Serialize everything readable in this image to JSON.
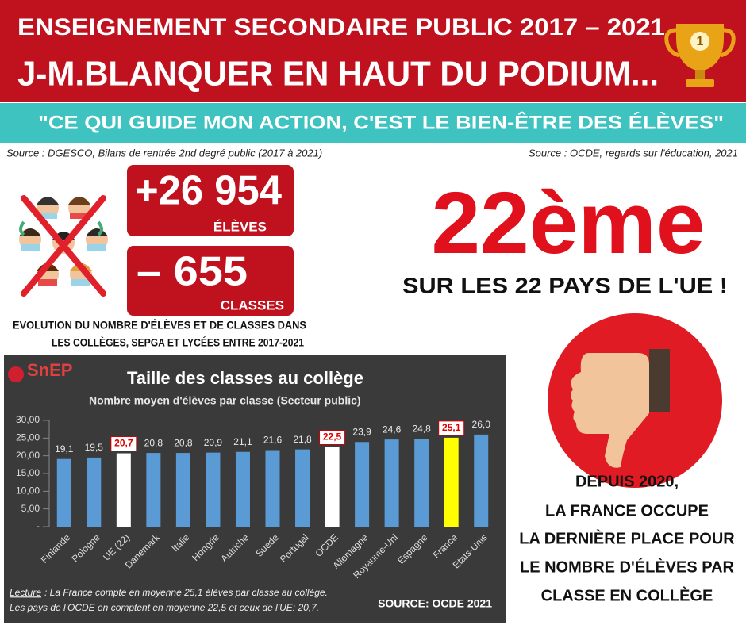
{
  "header": {
    "line1": "ENSEIGNEMENT SECONDAIRE PUBLIC   2017 – 2021",
    "line2": "J-M.BLANQUER EN HAUT DU PODIUM...",
    "trophy": "1"
  },
  "quote": "\"CE QUI GUIDE MON ACTION, C'EST LE BIEN-ÊTRE DES ÉLÈVES\"",
  "sources": {
    "left": "Source : DGESCO, Bilans de rentrée 2nd degré public (2017 à 2021)",
    "right": "Source : OCDE, regards sur l'éducation, 2021"
  },
  "students": {
    "value": "+26 954",
    "label": "ÉLÈVES"
  },
  "classes": {
    "value": "– 655",
    "label": "CLASSES"
  },
  "caption": [
    "EVOLUTION DU NOMBRE D'ÉLÈVES ET DE CLASSES DANS",
    "LES COLLÈGES, SEPGA ET LYCÉES ENTRE 2017-2021"
  ],
  "rank": {
    "value": "22ème",
    "text": "SUR LES 22 PAYS DE L'UE !"
  },
  "conclusion": [
    "DEPUIS 2020,",
    "LA FRANCE OCCUPE",
    "LA DERNIÈRE PLACE POUR",
    "LE NOMBRE D'ÉLÈVES PAR",
    "CLASSE EN COLLÈGE"
  ],
  "chart_data": {
    "type": "bar",
    "logo": "SnEP",
    "title": "Taille des classes au collège",
    "subtitle": "Nombre moyen d'élèves par classe (Secteur public)",
    "categories": [
      "Finlande",
      "Pologne",
      "UE (22)",
      "Danemark",
      "Italie",
      "Hongrie",
      "Autriche",
      "Suède",
      "Portugal",
      "OCDE",
      "Allemagne",
      "Royaume-Uni",
      "Espagne",
      "France",
      "Etats-Unis"
    ],
    "values": [
      19.1,
      19.5,
      20.7,
      20.8,
      20.8,
      20.9,
      21.1,
      21.6,
      21.8,
      22.5,
      23.9,
      24.6,
      24.8,
      25.1,
      26.0
    ],
    "value_labels": [
      "19,1",
      "19,5",
      "20,7",
      "20,8",
      "20,8",
      "20,9",
      "21,1",
      "21,6",
      "21,8",
      "22,5",
      "23,9",
      "24,6",
      "24,8",
      "25,1",
      "26,0"
    ],
    "color": "#5b9bd5",
    "colors": [
      "#5b9bd5",
      "#5b9bd5",
      "#ffffff",
      "#5b9bd5",
      "#5b9bd5",
      "#5b9bd5",
      "#5b9bd5",
      "#5b9bd5",
      "#5b9bd5",
      "#ffffff",
      "#5b9bd5",
      "#5b9bd5",
      "#5b9bd5",
      "#ffff00",
      "#5b9bd5"
    ],
    "ylim": [
      0,
      30
    ],
    "yticks": [
      {
        "value": 0,
        "label": "-"
      },
      {
        "value": 5,
        "label": "5,00"
      },
      {
        "value": 10,
        "label": "10,00"
      },
      {
        "value": 15,
        "label": "15,00"
      },
      {
        "value": 20,
        "label": "20,00"
      },
      {
        "value": 25,
        "label": "25,00"
      },
      {
        "value": 30,
        "label": "30,00"
      }
    ],
    "note_label": "Lecture",
    "note": [
      ": La France compte en moyenne 25,1 élèves par classe au collège.",
      "Les pays de l'OCDE en comptent en moyenne 22,5 et ceux de l'UE: 20,7."
    ],
    "source": "SOURCE: OCDE 2021"
  }
}
